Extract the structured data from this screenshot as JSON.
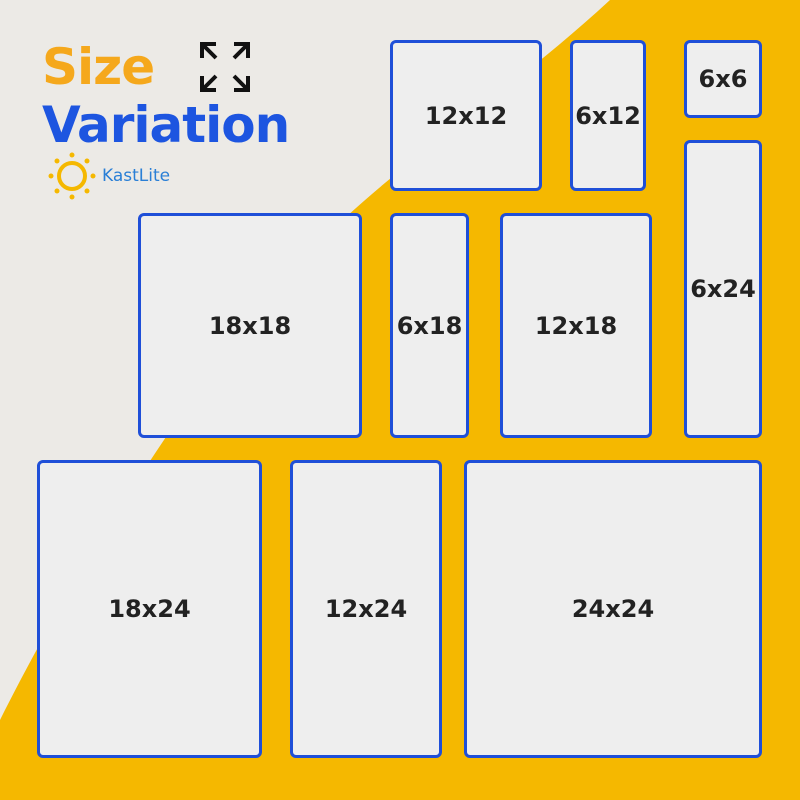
{
  "heading": {
    "line1": "Size",
    "line2": "Variation"
  },
  "brand": {
    "name": "KastLite"
  },
  "colors": {
    "yellow": "#f5b800",
    "blue": "#1f4fd8",
    "orange": "#f5a81c",
    "panel": "#eeeeee"
  },
  "icons": [
    "expand-arrows-icon",
    "sun-logo-icon"
  ],
  "panels": [
    "12x12",
    "6x12",
    "6x6",
    "6x24",
    "18x18",
    "6x18",
    "12x18",
    "18x24",
    "12x24",
    "24x24"
  ]
}
